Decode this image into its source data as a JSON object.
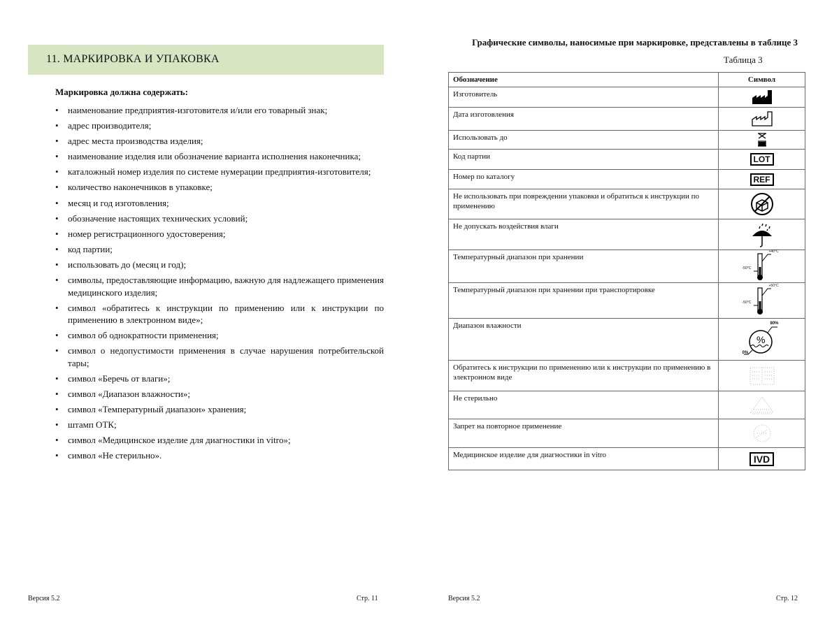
{
  "left_page": {
    "section_title": "11.  МАРКИРОВКА И УПАКОВКА",
    "subheading": "Маркировка должна содержать:",
    "items": [
      "наименование предприятия-изготовителя и/или его товарный знак;",
      "адрес производителя;",
      "адрес места производства изделия;",
      "наименование изделия или обозначение варианта исполнения наконечника;",
      "каталожный номер изделия по системе нумерации предприятия-изготовителя;",
      "количество наконечников в упаковке;",
      "месяц и год изготовления;",
      "обозначение настоящих технических условий;",
      "номер регистрационного удостоверения;",
      "код партии;",
      "использовать до (месяц и год);",
      "символы, предоставляющие информацию, важную для надлежащего применения медицинского изделия;",
      "символ «обратитесь к инструкции по применению или к инструкции по применению в электронном виде»;",
      "символ об однократности применения;",
      "символ о недопустимости применения в случае нарушения потребительской тары;",
      "символ «Беречь от влаги»;",
      "символ «Диапазон влажности»;",
      "символ «Температурный диапазон» хранения;",
      "штамп ОТК;",
      "символ «Медицинское изделие для диагностики in vitro»;",
      "символ «Не стерильно»."
    ],
    "footer_version": "Версия 5.2",
    "footer_page": "Стр. 11"
  },
  "right_page": {
    "title": "Графические символы, наносимые при маркировке, представлены в таблице 3",
    "table_caption": "Таблица 3",
    "headers": [
      "Обозначение",
      "Символ"
    ],
    "rows": [
      {
        "label": "Изготовитель",
        "symbol": "manufacturer-icon"
      },
      {
        "label": "Дата изготовления",
        "symbol": "date-of-manufacture-icon"
      },
      {
        "label": "Использовать до",
        "symbol": "hourglass-icon"
      },
      {
        "label": "Код партии",
        "symbol": "lot-icon",
        "symbol_text": "LOT"
      },
      {
        "label": "Номер по каталогу",
        "symbol": "ref-icon",
        "symbol_text": "REF"
      },
      {
        "label": "Не использовать при повреждении упаковки и обратиться к инструкции по применению",
        "symbol": "damaged-package-icon"
      },
      {
        "label": "Не допускать воздействия влаги",
        "symbol": "umbrella-icon"
      },
      {
        "label": "Температурный диапазон при хранении",
        "symbol": "thermometer-icon",
        "temp_high": "+40°C",
        "temp_low": "-50°C"
      },
      {
        "label": "Температурный диапазон при хранении при транспортировке",
        "symbol": "thermometer-icon",
        "temp_high": "+50°C",
        "temp_low": "-50°C"
      },
      {
        "label": "Диапазон влажности",
        "symbol": "humidity-icon",
        "hum_high": "80%",
        "hum_low": "0%"
      },
      {
        "label": "Обратитесь к инструкции по применению или к инструкции по применению в электронном виде",
        "symbol": "eifu-icon"
      },
      {
        "label": "Не стерильно",
        "symbol": "non-sterile-icon"
      },
      {
        "label": "Запрет на повторное применение",
        "symbol": "do-not-reuse-icon"
      },
      {
        "label": "Медицинское изделие для диагностики in vitro",
        "symbol": "ivd-icon",
        "symbol_text": "IVD"
      }
    ],
    "footer_version": "Версия 5.2",
    "footer_page": "Стр. 12"
  },
  "colors": {
    "section_band": "#d7e5c3"
  }
}
